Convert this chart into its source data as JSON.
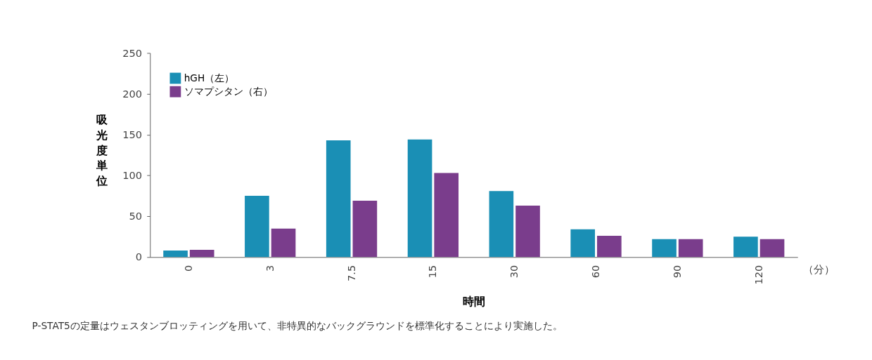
{
  "chart_data": {
    "type": "bar",
    "xlabel": "時間",
    "ylabel": "吸光度単位",
    "categories": [
      "0",
      "3",
      "7.5",
      "15",
      "30",
      "60",
      "90",
      "120"
    ],
    "series": [
      {
        "name": "hGH（左）",
        "color": "#1a8fb5",
        "values": [
          8,
          75,
          143,
          144,
          81,
          34,
          22,
          25
        ]
      },
      {
        "name": "ソマプシタン（右）",
        "color": "#7a3d8c",
        "values": [
          9,
          35,
          69,
          103,
          63,
          26,
          22,
          22
        ]
      }
    ],
    "ylim": [
      0,
      250
    ],
    "yticks": [
      0,
      50,
      100,
      150,
      200,
      250
    ],
    "grid": false,
    "legend": "top left",
    "annotations": [
      "（分）",
      "P-STAT5の定量はウェスタンブロッティングを用いて、非特異的なバックグラウンドを標準化することにより実施した。"
    ]
  }
}
